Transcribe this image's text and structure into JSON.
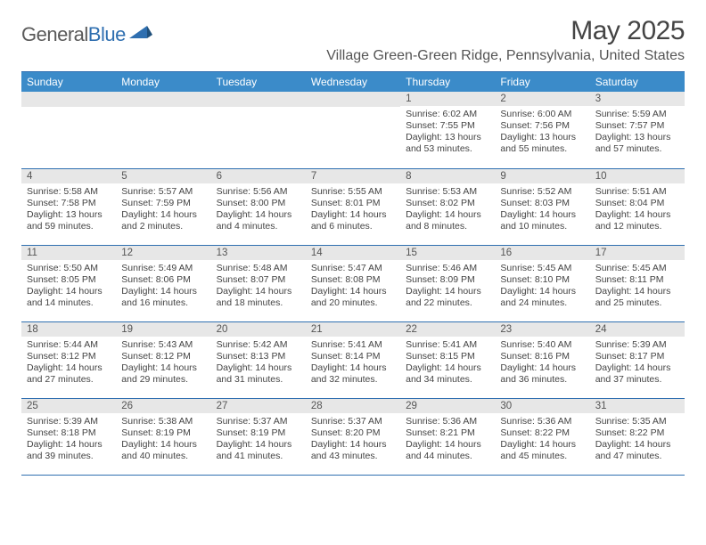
{
  "brand": {
    "part1": "General",
    "part2": "Blue"
  },
  "title": "May 2025",
  "location": "Village Green-Green Ridge, Pennsylvania, United States",
  "colors": {
    "header_bg": "#3b8bc9",
    "border": "#2f6fb0",
    "daynum_bg": "#e7e7e7",
    "text": "#444444",
    "logo_gray": "#5a5a5a",
    "logo_blue": "#2f6fb0"
  },
  "day_labels": [
    "Sunday",
    "Monday",
    "Tuesday",
    "Wednesday",
    "Thursday",
    "Friday",
    "Saturday"
  ],
  "weeks": [
    [
      null,
      null,
      null,
      null,
      {
        "n": "1",
        "sr": "6:02 AM",
        "ss": "7:55 PM",
        "dl": "13 hours and 53 minutes."
      },
      {
        "n": "2",
        "sr": "6:00 AM",
        "ss": "7:56 PM",
        "dl": "13 hours and 55 minutes."
      },
      {
        "n": "3",
        "sr": "5:59 AM",
        "ss": "7:57 PM",
        "dl": "13 hours and 57 minutes."
      }
    ],
    [
      {
        "n": "4",
        "sr": "5:58 AM",
        "ss": "7:58 PM",
        "dl": "13 hours and 59 minutes."
      },
      {
        "n": "5",
        "sr": "5:57 AM",
        "ss": "7:59 PM",
        "dl": "14 hours and 2 minutes."
      },
      {
        "n": "6",
        "sr": "5:56 AM",
        "ss": "8:00 PM",
        "dl": "14 hours and 4 minutes."
      },
      {
        "n": "7",
        "sr": "5:55 AM",
        "ss": "8:01 PM",
        "dl": "14 hours and 6 minutes."
      },
      {
        "n": "8",
        "sr": "5:53 AM",
        "ss": "8:02 PM",
        "dl": "14 hours and 8 minutes."
      },
      {
        "n": "9",
        "sr": "5:52 AM",
        "ss": "8:03 PM",
        "dl": "14 hours and 10 minutes."
      },
      {
        "n": "10",
        "sr": "5:51 AM",
        "ss": "8:04 PM",
        "dl": "14 hours and 12 minutes."
      }
    ],
    [
      {
        "n": "11",
        "sr": "5:50 AM",
        "ss": "8:05 PM",
        "dl": "14 hours and 14 minutes."
      },
      {
        "n": "12",
        "sr": "5:49 AM",
        "ss": "8:06 PM",
        "dl": "14 hours and 16 minutes."
      },
      {
        "n": "13",
        "sr": "5:48 AM",
        "ss": "8:07 PM",
        "dl": "14 hours and 18 minutes."
      },
      {
        "n": "14",
        "sr": "5:47 AM",
        "ss": "8:08 PM",
        "dl": "14 hours and 20 minutes."
      },
      {
        "n": "15",
        "sr": "5:46 AM",
        "ss": "8:09 PM",
        "dl": "14 hours and 22 minutes."
      },
      {
        "n": "16",
        "sr": "5:45 AM",
        "ss": "8:10 PM",
        "dl": "14 hours and 24 minutes."
      },
      {
        "n": "17",
        "sr": "5:45 AM",
        "ss": "8:11 PM",
        "dl": "14 hours and 25 minutes."
      }
    ],
    [
      {
        "n": "18",
        "sr": "5:44 AM",
        "ss": "8:12 PM",
        "dl": "14 hours and 27 minutes."
      },
      {
        "n": "19",
        "sr": "5:43 AM",
        "ss": "8:12 PM",
        "dl": "14 hours and 29 minutes."
      },
      {
        "n": "20",
        "sr": "5:42 AM",
        "ss": "8:13 PM",
        "dl": "14 hours and 31 minutes."
      },
      {
        "n": "21",
        "sr": "5:41 AM",
        "ss": "8:14 PM",
        "dl": "14 hours and 32 minutes."
      },
      {
        "n": "22",
        "sr": "5:41 AM",
        "ss": "8:15 PM",
        "dl": "14 hours and 34 minutes."
      },
      {
        "n": "23",
        "sr": "5:40 AM",
        "ss": "8:16 PM",
        "dl": "14 hours and 36 minutes."
      },
      {
        "n": "24",
        "sr": "5:39 AM",
        "ss": "8:17 PM",
        "dl": "14 hours and 37 minutes."
      }
    ],
    [
      {
        "n": "25",
        "sr": "5:39 AM",
        "ss": "8:18 PM",
        "dl": "14 hours and 39 minutes."
      },
      {
        "n": "26",
        "sr": "5:38 AM",
        "ss": "8:19 PM",
        "dl": "14 hours and 40 minutes."
      },
      {
        "n": "27",
        "sr": "5:37 AM",
        "ss": "8:19 PM",
        "dl": "14 hours and 41 minutes."
      },
      {
        "n": "28",
        "sr": "5:37 AM",
        "ss": "8:20 PM",
        "dl": "14 hours and 43 minutes."
      },
      {
        "n": "29",
        "sr": "5:36 AM",
        "ss": "8:21 PM",
        "dl": "14 hours and 44 minutes."
      },
      {
        "n": "30",
        "sr": "5:36 AM",
        "ss": "8:22 PM",
        "dl": "14 hours and 45 minutes."
      },
      {
        "n": "31",
        "sr": "5:35 AM",
        "ss": "8:22 PM",
        "dl": "14 hours and 47 minutes."
      }
    ]
  ],
  "labels": {
    "sunrise": "Sunrise:",
    "sunset": "Sunset:",
    "daylight": "Daylight:"
  }
}
